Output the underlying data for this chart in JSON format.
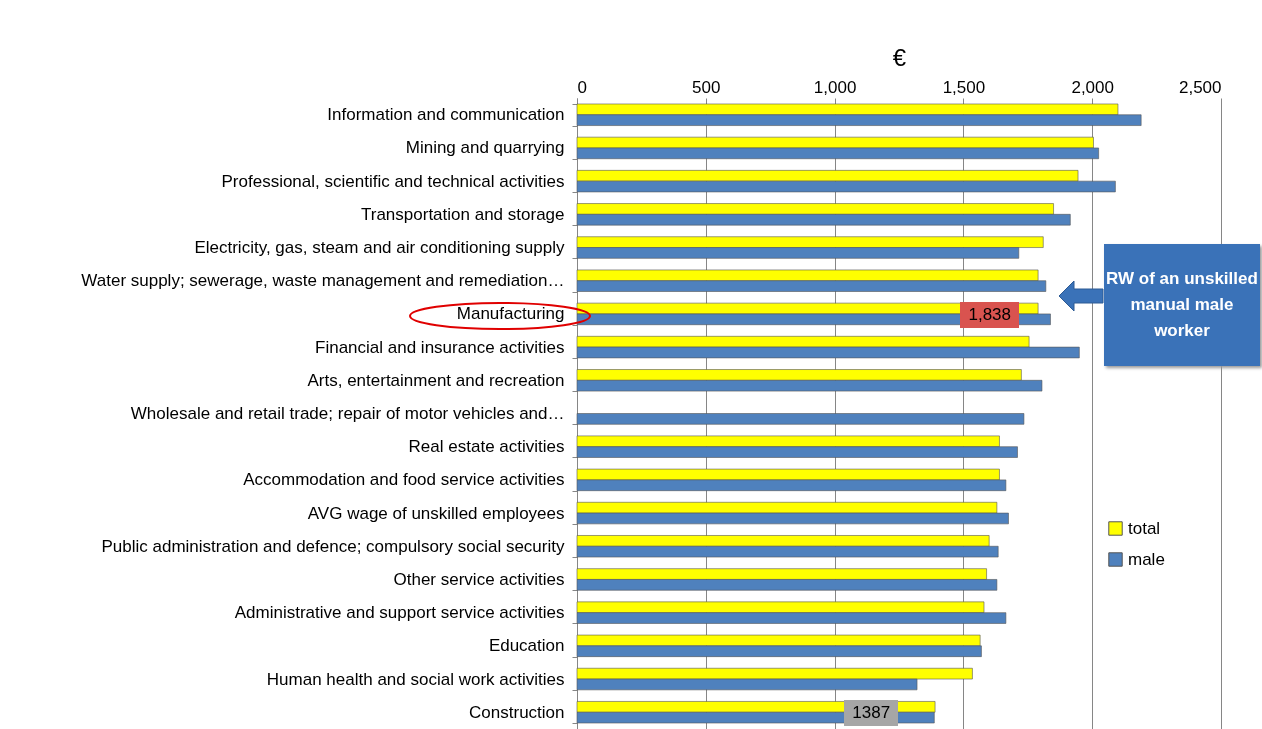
{
  "chart_data": {
    "type": "bar",
    "orientation": "horizontal",
    "xlabel": "€",
    "categories": [
      "Information and communication",
      "Mining and quarrying",
      "Professional, scientific and technical activities",
      "Transportation and storage",
      "Electricity, gas, steam and air conditioning supply",
      "Water supply; sewerage, waste management and remediation…",
      "Manufacturing",
      "Financial and insurance activities",
      "Arts, entertainment and recreation",
      "Wholesale and retail trade; repair of motor vehicles and…",
      "Real estate activities",
      "Accommodation and food service activities",
      "AVG wage of unskilled employees",
      "Public administration and defence; compulsory social security",
      "Other service activities",
      "Administrative and support service activities",
      "Education",
      "Human health and social work activities",
      "Construction"
    ],
    "series": [
      {
        "name": "total",
        "color": "#ffff00",
        "values": [
          2100,
          2005,
          1945,
          1850,
          1810,
          1790,
          1790,
          1755,
          1725,
          null,
          1640,
          1640,
          1630,
          1600,
          1590,
          1580,
          1565,
          1535,
          1390
        ]
      },
      {
        "name": "male",
        "color": "#4f81bd",
        "values": [
          2190,
          2025,
          2090,
          1915,
          1715,
          1820,
          1838,
          1950,
          1805,
          1735,
          1710,
          1665,
          1675,
          1635,
          1630,
          1665,
          1570,
          1320,
          1387
        ]
      }
    ],
    "xlim": [
      0,
      2500
    ],
    "xticks": [
      0,
      {
        "value": 500,
        "label": "500"
      },
      {
        "value": 1000,
        "label": "1,000"
      },
      {
        "value": 1500,
        "label": "1,500"
      },
      {
        "value": 2000,
        "label": "2,000"
      },
      {
        "value": 2500,
        "label": "2,500"
      }
    ],
    "grid": "x",
    "legend": "right",
    "annotations": [
      {
        "text": "1,838",
        "x": 1838,
        "y": "Manufacturing"
      },
      {
        "text": "1387",
        "x": 1387,
        "y": "Construction"
      },
      "RW of an unskilled manual male worker"
    ]
  }
}
